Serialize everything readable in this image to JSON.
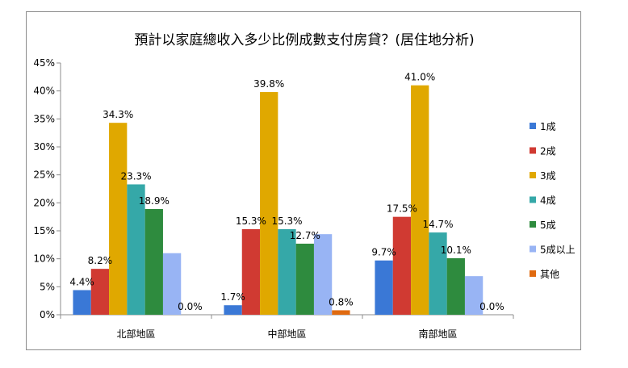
{
  "chart_data": {
    "type": "bar",
    "title": "預計以家庭總收入多少比例成數支付房貸？(居住地分析)",
    "categories": [
      "北部地區",
      "中部地區",
      "南部地區"
    ],
    "ylim": [
      0,
      45
    ],
    "yticks": [
      "0%",
      "5%",
      "10%",
      "15%",
      "20%",
      "25%",
      "30%",
      "35%",
      "40%",
      "45%"
    ],
    "series": [
      {
        "name": "1成",
        "color": "#3a78d6",
        "values": [
          4.4,
          1.7,
          9.7
        ],
        "labels": [
          "4.4%",
          "1.7%",
          "9.7%"
        ]
      },
      {
        "name": "2成",
        "color": "#d03a32",
        "values": [
          8.2,
          15.3,
          17.5
        ],
        "labels": [
          "8.2%",
          "15.3%",
          "17.5%"
        ]
      },
      {
        "name": "3成",
        "color": "#e0a800",
        "values": [
          34.3,
          39.8,
          41.0
        ],
        "labels": [
          "34.3%",
          "39.8%",
          "41.0%"
        ]
      },
      {
        "name": "4成",
        "color": "#35a8a8",
        "values": [
          23.3,
          15.3,
          14.7
        ],
        "labels": [
          "23.3%",
          "15.3%",
          "14.7%"
        ]
      },
      {
        "name": "5成",
        "color": "#2e8b3e",
        "values": [
          18.9,
          12.7,
          10.1
        ],
        "labels": [
          "18.9%",
          "12.7%",
          "10.1%"
        ]
      },
      {
        "name": "5成以上",
        "color": "#98b4f4",
        "values": [
          11.0,
          14.4,
          6.9
        ],
        "labels": [
          "",
          "",
          ""
        ]
      },
      {
        "name": "其他",
        "color": "#e06a10",
        "values": [
          0.0,
          0.8,
          0.0
        ],
        "labels": [
          "0.0%",
          "0.8%",
          "0.0%"
        ]
      }
    ],
    "grid": false,
    "legend": "right"
  }
}
